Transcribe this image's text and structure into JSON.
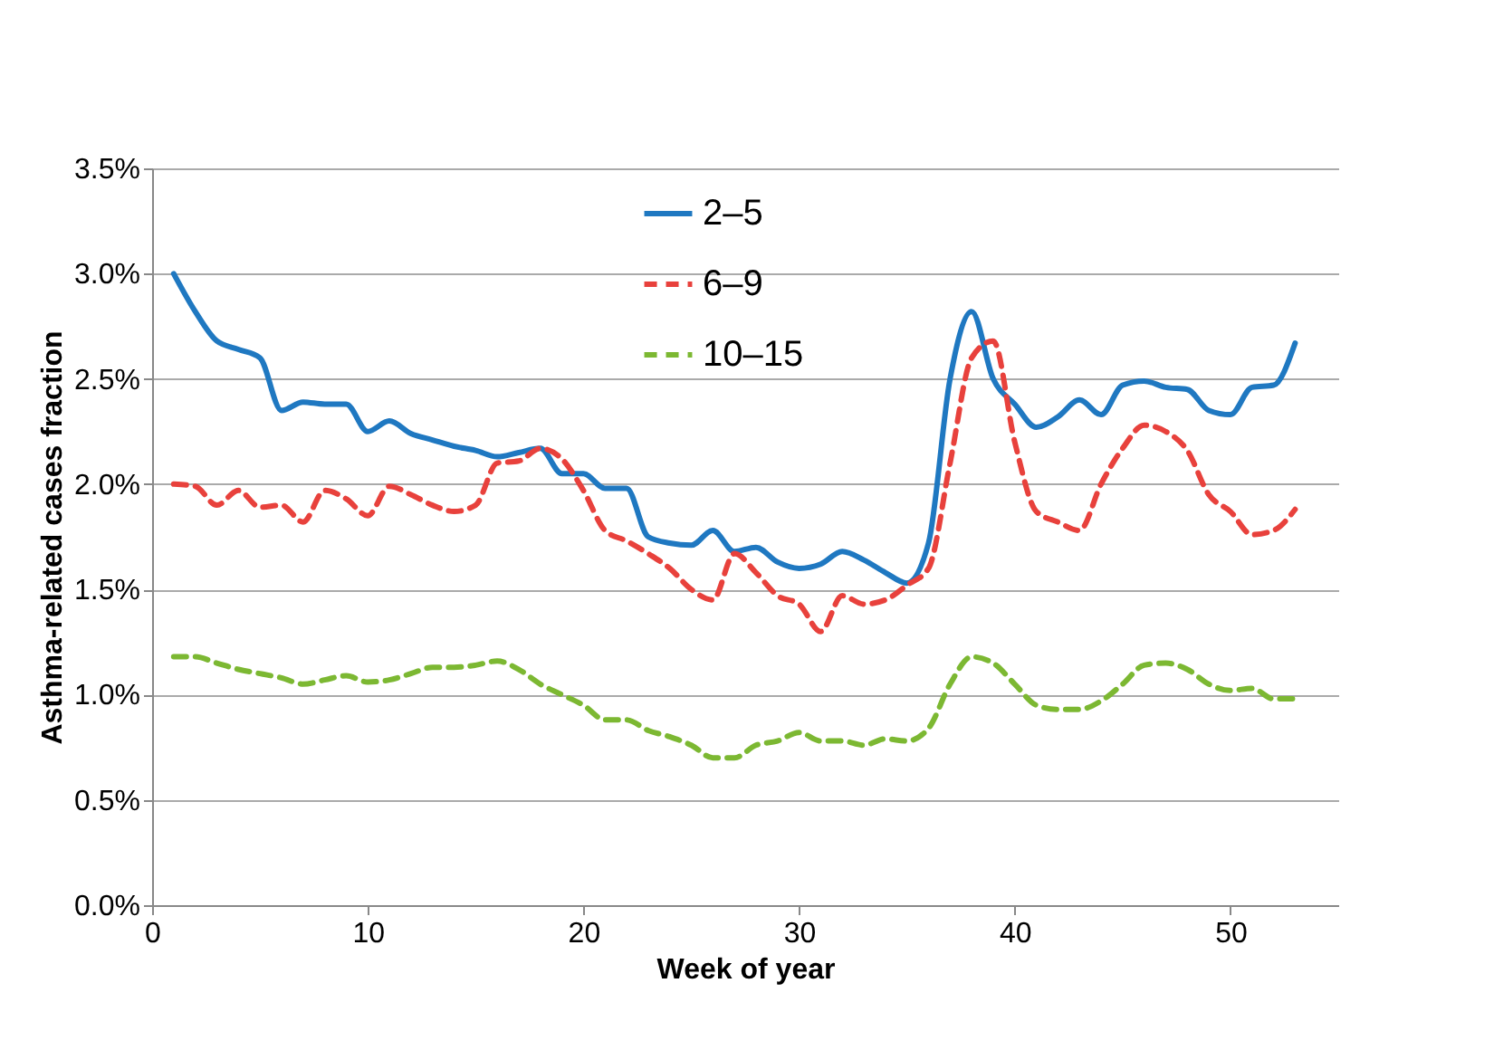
{
  "chart_data": {
    "type": "line",
    "xlabel": "Week of year",
    "ylabel": "Asthma-related cases fraction",
    "x": [
      1,
      2,
      3,
      4,
      5,
      6,
      7,
      8,
      9,
      10,
      11,
      12,
      13,
      14,
      15,
      16,
      17,
      18,
      19,
      20,
      21,
      22,
      23,
      24,
      25,
      26,
      27,
      28,
      29,
      30,
      31,
      32,
      33,
      34,
      35,
      36,
      37,
      38,
      39,
      40,
      41,
      42,
      43,
      44,
      45,
      46,
      47,
      48,
      49,
      50,
      51,
      52,
      53
    ],
    "series": [
      {
        "name": "2–5",
        "color": "#1f78c1",
        "line_style": "solid",
        "values": [
          3.0,
          2.82,
          2.68,
          2.64,
          2.6,
          2.35,
          2.39,
          2.38,
          2.38,
          2.25,
          2.3,
          2.24,
          2.21,
          2.18,
          2.16,
          2.13,
          2.15,
          2.17,
          2.05,
          2.05,
          1.98,
          1.98,
          1.75,
          1.72,
          1.71,
          1.78,
          1.68,
          1.7,
          1.63,
          1.6,
          1.62,
          1.68,
          1.64,
          1.58,
          1.53,
          1.72,
          2.5,
          2.82,
          2.5,
          2.38,
          2.27,
          2.32,
          2.4,
          2.33,
          2.47,
          2.49,
          2.46,
          2.45,
          2.35,
          2.33,
          2.46,
          2.47,
          2.67
        ]
      },
      {
        "name": "6–9",
        "color": "#e8413c",
        "line_style": "dashed",
        "values": [
          2.0,
          1.99,
          1.9,
          1.97,
          1.89,
          1.9,
          1.82,
          1.97,
          1.93,
          1.85,
          1.99,
          1.95,
          1.9,
          1.87,
          1.9,
          2.1,
          2.11,
          2.17,
          2.12,
          1.97,
          1.78,
          1.73,
          1.67,
          1.6,
          1.5,
          1.45,
          1.67,
          1.58,
          1.47,
          1.43,
          1.3,
          1.47,
          1.43,
          1.45,
          1.52,
          1.6,
          2.1,
          2.6,
          2.68,
          2.2,
          1.87,
          1.82,
          1.78,
          2.0,
          2.17,
          2.28,
          2.25,
          2.16,
          1.95,
          1.87,
          1.76,
          1.78,
          1.88
        ]
      },
      {
        "name": "10–15",
        "color": "#7cb832",
        "line_style": "dashed",
        "values": [
          1.18,
          1.18,
          1.15,
          1.12,
          1.1,
          1.08,
          1.05,
          1.07,
          1.09,
          1.06,
          1.07,
          1.1,
          1.13,
          1.13,
          1.14,
          1.16,
          1.12,
          1.05,
          1.0,
          0.95,
          0.88,
          0.88,
          0.83,
          0.8,
          0.76,
          0.7,
          0.7,
          0.76,
          0.78,
          0.82,
          0.78,
          0.78,
          0.76,
          0.79,
          0.78,
          0.84,
          1.05,
          1.18,
          1.15,
          1.05,
          0.95,
          0.93,
          0.93,
          0.97,
          1.05,
          1.14,
          1.15,
          1.12,
          1.05,
          1.02,
          1.03,
          0.98,
          0.98
        ]
      }
    ],
    "xlim": [
      0,
      55
    ],
    "xticks": [
      0,
      10,
      20,
      30,
      40,
      50
    ],
    "ylim": [
      0,
      3.5
    ],
    "yticks": [
      {
        "value": 0,
        "label": "0.0%"
      },
      {
        "value": 0.5,
        "label": "0.5%"
      },
      {
        "value": 1,
        "label": "1.0%"
      },
      {
        "value": 1.5,
        "label": "1.5%"
      },
      {
        "value": 2,
        "label": "2.0%"
      },
      {
        "value": 2.5,
        "label": "2.5%"
      },
      {
        "value": 3,
        "label": "3.0%"
      },
      {
        "value": 3.5,
        "label": "3.5%"
      }
    ],
    "grid": "y",
    "legend": "top",
    "marker": "none"
  }
}
